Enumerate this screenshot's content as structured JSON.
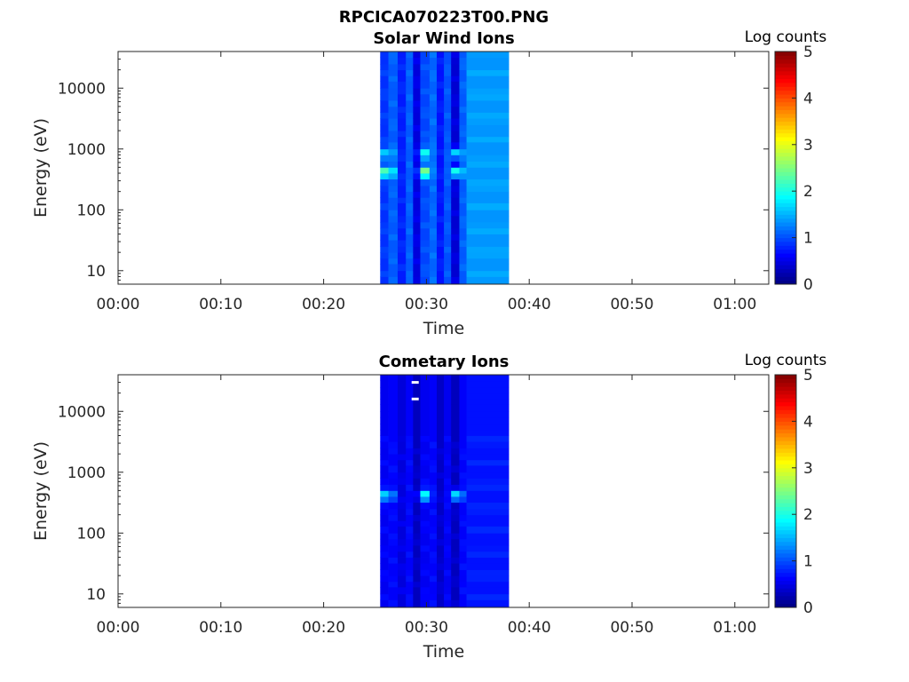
{
  "figure": {
    "title": "RPCICA070223T00.PNG"
  },
  "chart_data": [
    {
      "type": "heatmap",
      "title": "Solar Wind Ions",
      "xlabel": "Time",
      "ylabel": "Energy (eV)",
      "x_ticks": [
        "00:00",
        "00:10",
        "00:20",
        "00:30",
        "00:40",
        "00:50",
        "01:00"
      ],
      "x_range_minutes": [
        0,
        63.3
      ],
      "y_scale": "log",
      "y_range": [
        6,
        40000
      ],
      "y_ticks": [
        "10",
        "100",
        "1000",
        "10000"
      ],
      "colorbar": {
        "label": "Log counts",
        "range": [
          0,
          5
        ],
        "ticks": [
          "0",
          "1",
          "2",
          "3",
          "4",
          "5"
        ],
        "colormap": "jet"
      },
      "data_time_range_minutes": [
        25.5,
        38.0
      ],
      "column_edges_minutes": [
        25.5,
        26.3,
        27.2,
        28.0,
        28.7,
        29.4,
        30.3,
        31.0,
        31.7,
        32.4,
        33.2,
        33.9,
        38.0
      ],
      "energy_band_edges_eV": [
        6,
        8,
        10,
        13,
        16,
        20,
        25,
        32,
        40,
        50,
        63,
        80,
        100,
        130,
        160,
        200,
        250,
        320,
        400,
        500,
        630,
        800,
        1000,
        1300,
        1600,
        2000,
        2500,
        3200,
        4000,
        5000,
        6300,
        8000,
        10000,
        13000,
        16000,
        20000,
        25000,
        32000,
        40000
      ],
      "base_log_counts_by_column": [
        0.85,
        1.05,
        0.75,
        1.05,
        0.45,
        0.95,
        1.1,
        0.7,
        1.0,
        0.4,
        1.05,
        1.35
      ],
      "peaks": [
        {
          "time_minutes": 26.2,
          "energy_eV": 420,
          "log_counts": 2.8
        },
        {
          "time_minutes": 26.2,
          "energy_eV": 850,
          "log_counts": 1.9
        },
        {
          "time_minutes": 29.8,
          "energy_eV": 420,
          "log_counts": 2.6
        },
        {
          "time_minutes": 29.8,
          "energy_eV": 850,
          "log_counts": 2.0
        },
        {
          "time_minutes": 33.0,
          "energy_eV": 420,
          "log_counts": 2.3
        },
        {
          "time_minutes": 33.0,
          "energy_eV": 850,
          "log_counts": 1.9
        }
      ]
    },
    {
      "type": "heatmap",
      "title": "Cometary Ions",
      "xlabel": "Time",
      "ylabel": "Energy (eV)",
      "x_ticks": [
        "00:00",
        "00:10",
        "00:20",
        "00:30",
        "00:40",
        "00:50",
        "01:00"
      ],
      "x_range_minutes": [
        0,
        63.3
      ],
      "y_scale": "log",
      "y_range": [
        6,
        40000
      ],
      "y_ticks": [
        "10",
        "100",
        "1000",
        "10000"
      ],
      "colorbar": {
        "label": "Log counts",
        "range": [
          0,
          5
        ],
        "ticks": [
          "0",
          "1",
          "2",
          "3",
          "4",
          "5"
        ],
        "colormap": "jet"
      },
      "data_time_range_minutes": [
        25.5,
        38.0
      ],
      "column_edges_minutes": [
        25.5,
        26.3,
        27.2,
        28.0,
        28.7,
        29.4,
        30.3,
        31.0,
        31.7,
        32.4,
        33.2,
        33.9,
        38.0
      ],
      "energy_band_edges_eV": [
        6,
        8,
        10,
        13,
        16,
        20,
        25,
        32,
        40,
        50,
        63,
        80,
        100,
        130,
        160,
        200,
        250,
        320,
        400,
        500,
        630,
        800,
        1000,
        1300,
        1600,
        2000,
        2500,
        3200,
        4000,
        5000,
        6300,
        8000,
        10000,
        13000,
        16000,
        20000,
        25000,
        32000,
        40000
      ],
      "base_log_counts_by_column": [
        0.55,
        0.6,
        0.45,
        0.6,
        0.3,
        0.55,
        0.6,
        0.35,
        0.55,
        0.3,
        0.6,
        0.7
      ],
      "peaks": [
        {
          "time_minutes": 26.2,
          "energy_eV": 420,
          "log_counts": 2.1
        },
        {
          "time_minutes": 29.8,
          "energy_eV": 420,
          "log_counts": 2.0
        },
        {
          "time_minutes": 33.0,
          "energy_eV": 420,
          "log_counts": 2.0
        }
      ],
      "white_marks": [
        {
          "time_minutes": 28.9,
          "energy_eV": 30000
        },
        {
          "time_minutes": 28.9,
          "energy_eV": 16000
        }
      ]
    }
  ]
}
